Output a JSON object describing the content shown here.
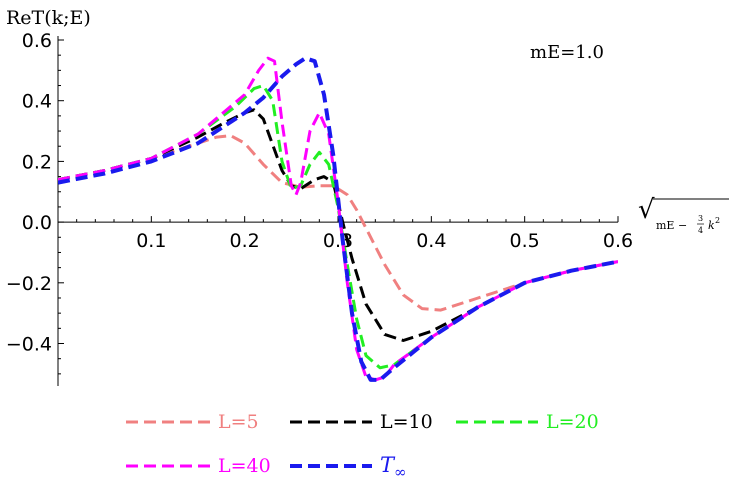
{
  "chart_data": {
    "type": "line",
    "title": "",
    "ylabel": "ReT(k;E)",
    "xlabel": "mE − ¾ k²",
    "xlabel_parts": {
      "prefix": "mE −",
      "num": "3",
      "den": "4",
      "var": "k",
      "exp": "2"
    },
    "annotation": "mE=1.0",
    "xlim": [
      0,
      0.6
    ],
    "ylim": [
      -0.54,
      0.6
    ],
    "x_ticks": [
      0.1,
      0.2,
      0.3,
      0.4,
      0.5,
      0.6
    ],
    "x_tick_labels": [
      "0.1",
      "0.2",
      "0.3",
      "0.4",
      "0.5",
      "0.6"
    ],
    "y_ticks": [
      -0.4,
      -0.2,
      0.0,
      0.2,
      0.4,
      0.6
    ],
    "y_tick_labels": [
      "−0.4",
      "−0.2",
      "0.0",
      "0.2",
      "0.4",
      "0.6"
    ],
    "grid": false,
    "legend_position": "bottom",
    "series": [
      {
        "name": "L=5",
        "color": "#f08080",
        "x": [
          0.0,
          0.05,
          0.1,
          0.15,
          0.17,
          0.185,
          0.2,
          0.22,
          0.24,
          0.26,
          0.28,
          0.295,
          0.31,
          0.32,
          0.33,
          0.35,
          0.37,
          0.39,
          0.41,
          0.45,
          0.5,
          0.55,
          0.6
        ],
        "y": [
          0.14,
          0.17,
          0.21,
          0.26,
          0.28,
          0.285,
          0.26,
          0.19,
          0.13,
          0.115,
          0.12,
          0.12,
          0.09,
          0.04,
          -0.02,
          -0.14,
          -0.24,
          -0.285,
          -0.29,
          -0.25,
          -0.2,
          -0.16,
          -0.13
        ]
      },
      {
        "name": "L=10",
        "color": "#000000",
        "x": [
          0.0,
          0.05,
          0.1,
          0.15,
          0.18,
          0.2,
          0.21,
          0.22,
          0.24,
          0.25,
          0.26,
          0.275,
          0.285,
          0.295,
          0.305,
          0.315,
          0.33,
          0.35,
          0.37,
          0.4,
          0.45,
          0.5,
          0.55,
          0.6
        ],
        "y": [
          0.14,
          0.17,
          0.21,
          0.28,
          0.33,
          0.36,
          0.37,
          0.34,
          0.17,
          0.12,
          0.11,
          0.14,
          0.15,
          0.13,
          0.0,
          -0.12,
          -0.27,
          -0.37,
          -0.39,
          -0.36,
          -0.28,
          -0.2,
          -0.16,
          -0.13
        ]
      },
      {
        "name": "L=20",
        "color": "#22ee22",
        "x": [
          0.0,
          0.05,
          0.1,
          0.15,
          0.19,
          0.21,
          0.22,
          0.23,
          0.24,
          0.25,
          0.26,
          0.27,
          0.28,
          0.29,
          0.3,
          0.31,
          0.32,
          0.33,
          0.345,
          0.36,
          0.4,
          0.45,
          0.5,
          0.55,
          0.6
        ],
        "y": [
          0.14,
          0.17,
          0.21,
          0.29,
          0.38,
          0.44,
          0.45,
          0.4,
          0.2,
          0.11,
          0.12,
          0.19,
          0.23,
          0.19,
          0.05,
          -0.14,
          -0.32,
          -0.44,
          -0.48,
          -0.47,
          -0.38,
          -0.28,
          -0.2,
          -0.16,
          -0.13
        ]
      },
      {
        "name": "L=40",
        "color": "#ff00ff",
        "x": [
          0.0,
          0.05,
          0.1,
          0.15,
          0.2,
          0.215,
          0.225,
          0.232,
          0.24,
          0.25,
          0.255,
          0.26,
          0.27,
          0.28,
          0.29,
          0.3,
          0.31,
          0.32,
          0.33,
          0.34,
          0.35,
          0.36,
          0.4,
          0.45,
          0.5,
          0.55,
          0.6
        ],
        "y": [
          0.14,
          0.17,
          0.21,
          0.29,
          0.42,
          0.5,
          0.54,
          0.53,
          0.33,
          0.12,
          0.09,
          0.13,
          0.3,
          0.36,
          0.29,
          0.07,
          -0.2,
          -0.42,
          -0.51,
          -0.52,
          -0.51,
          -0.47,
          -0.38,
          -0.28,
          -0.2,
          -0.16,
          -0.13
        ]
      },
      {
        "name": "T∞",
        "name_parts": {
          "base": "T",
          "sub": "∞"
        },
        "color": "#1a1aee",
        "x": [
          0.0,
          0.05,
          0.1,
          0.15,
          0.2,
          0.22,
          0.24,
          0.255,
          0.265,
          0.275,
          0.285,
          0.295,
          0.305,
          0.315,
          0.325,
          0.335,
          0.345,
          0.36,
          0.38,
          0.4,
          0.45,
          0.5,
          0.55,
          0.6
        ],
        "y": [
          0.13,
          0.16,
          0.2,
          0.26,
          0.36,
          0.41,
          0.48,
          0.52,
          0.54,
          0.53,
          0.42,
          0.22,
          -0.06,
          -0.3,
          -0.46,
          -0.52,
          -0.52,
          -0.48,
          -0.43,
          -0.38,
          -0.28,
          -0.2,
          -0.16,
          -0.13
        ]
      }
    ]
  }
}
